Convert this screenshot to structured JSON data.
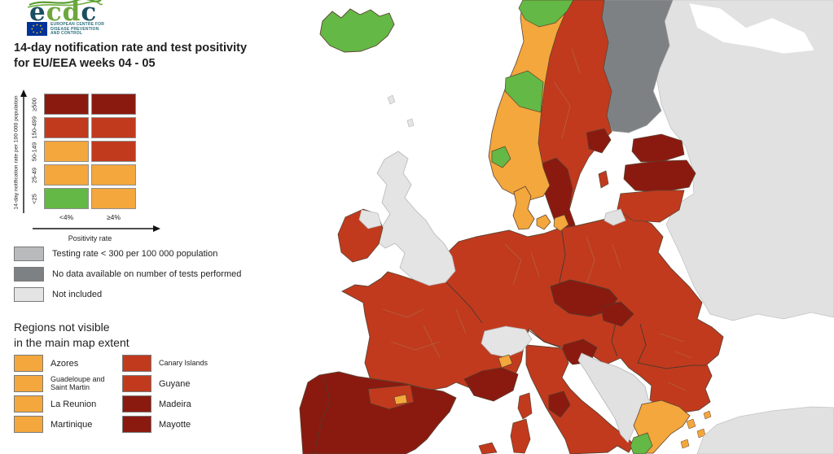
{
  "logo": {
    "name": "ecdc",
    "letter_colors": [
      "#1b4f5f",
      "#6ea73c",
      "#6ea73c",
      "#1b4f5f"
    ],
    "org_line1": "EUROPEAN CENTRE FOR",
    "org_line2": "DISEASE PREVENTION",
    "org_line3": "AND CONTROL"
  },
  "title": {
    "line1": "14-day notification rate and test positivity",
    "line2": "for EU/EEA weeks 04 - 05"
  },
  "matrix_legend": {
    "y_axis_label": "14-day notification rate per 100 000 population",
    "x_axis_label": "Positivity rate",
    "row_labels": [
      "≥500",
      "150-499",
      "50-149",
      "25-49",
      "<25"
    ],
    "col_labels": [
      "<4%",
      "≥4%"
    ],
    "rows": [
      [
        "dark_red",
        "dark_red"
      ],
      [
        "red",
        "red"
      ],
      [
        "orange",
        "red"
      ],
      [
        "orange",
        "orange"
      ],
      [
        "green",
        "orange"
      ]
    ]
  },
  "status_legend": [
    {
      "color": "light_gray",
      "label": "Testing rate < 300 per 100 000 population"
    },
    {
      "color": "dark_gray",
      "label": "No data available on number of tests performed"
    },
    {
      "color": "not_included",
      "label": "Not included"
    }
  ],
  "regions_legend": {
    "title_line1": "Regions not visible",
    "title_line2": "in the main map extent",
    "left": [
      {
        "label": "Azores",
        "color": "orange"
      },
      {
        "label": "Guadeloupe and Saint Martin",
        "color": "orange"
      },
      {
        "label": "La Reunion",
        "color": "orange"
      },
      {
        "label": "Martinique",
        "color": "orange"
      }
    ],
    "right": [
      {
        "label": "Canary Islands",
        "color": "red"
      },
      {
        "label": "Guyane",
        "color": "red"
      },
      {
        "label": "Madeira",
        "color": "dark_red"
      },
      {
        "label": "Mayotte",
        "color": "dark_red"
      }
    ]
  },
  "colors": {
    "green": "#64b845",
    "orange": "#f3a73c",
    "red": "#c13a1e",
    "dark_red": "#8a1a10",
    "light_gray": "#b9babb",
    "dark_gray": "#7e8184",
    "not_included": "#e4e4e4",
    "noneu": "#e1e1e1",
    "sea": "#ffffff"
  },
  "map": {
    "countries": {
      "russia": "noneu",
      "white_sea": "sea",
      "finland": "dark_gray",
      "norway": "orange",
      "norway_finnmark": "green",
      "norway_mid": "green",
      "norway_sw": "green",
      "sweden": "red",
      "sweden_south": "dark_red",
      "sweden_stockholm": "dark_red",
      "gotland": "red",
      "denmark_jutland": "orange",
      "denmark_funen": "orange",
      "denmark_zealand": "orange",
      "iceland": "green",
      "faroe": "not_included",
      "shetland": "not_included",
      "uk": "not_included",
      "ireland": "red",
      "northern_ireland": "not_included",
      "central_europe": "red",
      "czechia": "dark_red",
      "slovakia_east": "dark_red",
      "slovenia": "dark_red",
      "provence": "dark_red",
      "switzerland": "not_included",
      "ticino": "orange",
      "corsica": "red",
      "italy": "red",
      "italy_center": "dark_red",
      "sardinia": "red",
      "balearics": "red",
      "iberia": "dark_red",
      "spain_north": "red",
      "spain_north_small": "orange",
      "estonia": "dark_red",
      "latvia": "dark_red",
      "lithuania": "red",
      "kaliningrad": "noneu",
      "greece": "orange",
      "greece_west": "green",
      "aegean": "orange",
      "balkans": "noneu",
      "turkey": "noneu"
    }
  }
}
